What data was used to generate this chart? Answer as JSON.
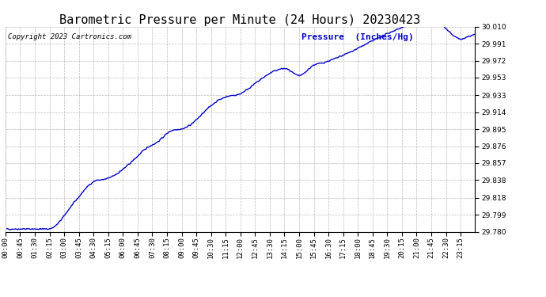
{
  "title": "Barometric Pressure per Minute (24 Hours) 20230423",
  "copyright_text": "Copyright 2023 Cartronics.com",
  "legend_label": "Pressure  (Inches/Hg)",
  "line_color": "#0000cc",
  "background_color": "#ffffff",
  "grid_color": "#aaaaaa",
  "title_color": "#000000",
  "copyright_color": "#000000",
  "legend_color": "#0000cc",
  "ylim_min": 29.78,
  "ylim_max": 30.01,
  "yticks": [
    29.78,
    29.799,
    29.818,
    29.838,
    29.857,
    29.876,
    29.895,
    29.914,
    29.933,
    29.953,
    29.972,
    29.991,
    30.01
  ],
  "xtick_labels": [
    "00:00",
    "00:45",
    "01:30",
    "02:15",
    "03:00",
    "03:45",
    "04:30",
    "05:15",
    "06:00",
    "06:45",
    "07:30",
    "08:15",
    "09:00",
    "09:45",
    "10:30",
    "11:15",
    "12:00",
    "12:45",
    "13:30",
    "14:15",
    "15:00",
    "15:45",
    "16:30",
    "17:15",
    "18:00",
    "18:45",
    "19:30",
    "20:15",
    "21:00",
    "21:45",
    "22:30",
    "23:15"
  ],
  "title_fontsize": 11,
  "copyright_fontsize": 6.5,
  "legend_fontsize": 8,
  "tick_fontsize": 6.5,
  "line_width": 1.0
}
